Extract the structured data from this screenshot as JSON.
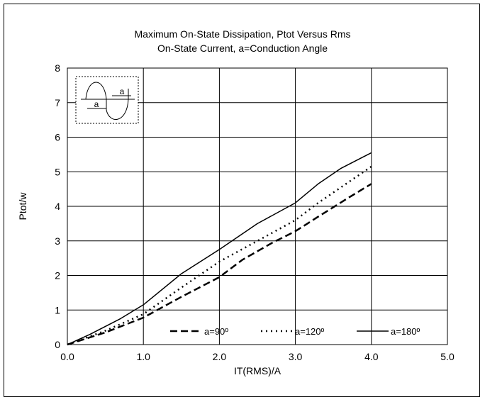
{
  "chart_data": {
    "type": "line",
    "title_line1": "Maximum On-State Dissipation, Ptot Versus Rms",
    "title_line2": "On-State Current, a=Conduction Angle",
    "xlabel": "IT(RMS)/A",
    "ylabel": "Ptot/w",
    "xlim": [
      0,
      5
    ],
    "ylim": [
      0,
      8
    ],
    "x_ticks": [
      "0.0",
      "1.0",
      "2.0",
      "3.0",
      "4.0",
      "5.0"
    ],
    "y_ticks": [
      "0",
      "1",
      "2",
      "3",
      "4",
      "5",
      "6",
      "7",
      "8"
    ],
    "grid": true,
    "legend_position": "bottom-right",
    "inset": {
      "label_left": "a",
      "label_right": "a"
    },
    "series": [
      {
        "name": "a=90º",
        "style": "dash",
        "color": "#000000",
        "x": [
          0,
          0.5,
          1.0,
          1.5,
          2.0,
          2.3,
          2.7,
          3.0,
          3.3,
          3.7,
          4.0
        ],
        "y": [
          0,
          0.35,
          0.78,
          1.38,
          1.95,
          2.45,
          2.95,
          3.28,
          3.7,
          4.25,
          4.65
        ]
      },
      {
        "name": "a=120º",
        "style": "dot",
        "color": "#000000",
        "x": [
          0,
          0.5,
          1.0,
          1.5,
          2.0,
          2.5,
          3.0,
          3.3,
          3.7,
          4.0
        ],
        "y": [
          0,
          0.4,
          0.88,
          1.65,
          2.4,
          3.0,
          3.6,
          4.1,
          4.7,
          5.15
        ]
      },
      {
        "name": "a=180º",
        "style": "solid",
        "color": "#000000",
        "x": [
          0,
          0.3,
          0.7,
          1.0,
          1.5,
          2.0,
          2.5,
          3.0,
          3.3,
          3.6,
          4.0
        ],
        "y": [
          0,
          0.3,
          0.75,
          1.15,
          2.05,
          2.75,
          3.5,
          4.1,
          4.65,
          5.1,
          5.55
        ]
      }
    ]
  }
}
